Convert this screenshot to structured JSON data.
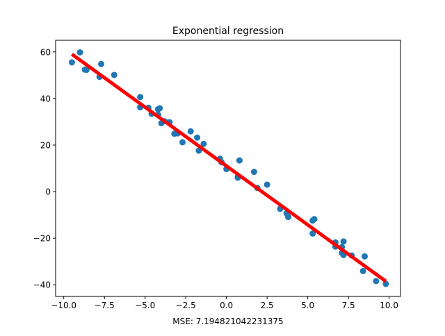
{
  "chart_data": {
    "type": "scatter",
    "title": "Exponential regression",
    "xlabel": "MSE: 7.194821042231375",
    "ylabel": "",
    "xlim": [
      -10.5,
      10.7
    ],
    "ylim": [
      -45,
      65
    ],
    "x_ticks": [
      -10.0,
      -7.5,
      -5.0,
      -2.5,
      0.0,
      2.5,
      5.0,
      7.5,
      10.0
    ],
    "x_tick_labels": [
      "−10.0",
      "−7.5",
      "−5.0",
      "−2.5",
      "0.0",
      "2.5",
      "5.0",
      "7.5",
      "10.0"
    ],
    "y_ticks": [
      -40,
      -20,
      0,
      20,
      40,
      60
    ],
    "y_tick_labels": [
      "−40",
      "−20",
      "0",
      "20",
      "40",
      "60"
    ],
    "grid": false,
    "series": [
      {
        "kind": "scatter",
        "color": "#1f77b4",
        "points": [
          [
            -9.5,
            55.5
          ],
          [
            -9.0,
            59.8
          ],
          [
            -8.7,
            52.4
          ],
          [
            -8.6,
            52.3
          ],
          [
            -7.8,
            49.3
          ],
          [
            -7.7,
            54.8
          ],
          [
            -6.9,
            50.1
          ],
          [
            -5.3,
            40.6
          ],
          [
            -5.3,
            36.2
          ],
          [
            -4.8,
            36.0
          ],
          [
            -4.6,
            33.4
          ],
          [
            -4.2,
            33.0
          ],
          [
            -4.1,
            35.8
          ],
          [
            -4.2,
            35.4
          ],
          [
            -4.0,
            29.4
          ],
          [
            -3.8,
            30.2
          ],
          [
            -3.5,
            29.8
          ],
          [
            -3.2,
            24.9
          ],
          [
            -3.0,
            25.0
          ],
          [
            -2.7,
            21.2
          ],
          [
            -2.2,
            25.9
          ],
          [
            -1.8,
            23.2
          ],
          [
            -1.7,
            17.6
          ],
          [
            -1.4,
            20.5
          ],
          [
            -0.4,
            14.1
          ],
          [
            -0.3,
            12.6
          ],
          [
            0.0,
            9.7
          ],
          [
            0.7,
            6.4
          ],
          [
            0.7,
            6.0
          ],
          [
            0.8,
            13.4
          ],
          [
            1.7,
            8.5
          ],
          [
            1.9,
            1.6
          ],
          [
            2.5,
            3.0
          ],
          [
            3.3,
            -7.4
          ],
          [
            3.7,
            -9.3
          ],
          [
            3.8,
            -10.9
          ],
          [
            5.3,
            -12.4
          ],
          [
            5.4,
            -11.8
          ],
          [
            5.3,
            -18.0
          ],
          [
            6.7,
            -21.8
          ],
          [
            6.7,
            -23.6
          ],
          [
            7.1,
            -23.8
          ],
          [
            7.2,
            -21.4
          ],
          [
            7.2,
            -27.2
          ],
          [
            7.1,
            -26.3
          ],
          [
            7.7,
            -27.4
          ],
          [
            8.4,
            -34.1
          ],
          [
            8.5,
            -27.8
          ],
          [
            9.2,
            -38.4
          ],
          [
            9.8,
            -39.6
          ]
        ]
      },
      {
        "kind": "line",
        "color": "#ff0000",
        "points": [
          [
            -9.5,
            59.0
          ],
          [
            9.8,
            -38.5
          ]
        ]
      }
    ]
  }
}
